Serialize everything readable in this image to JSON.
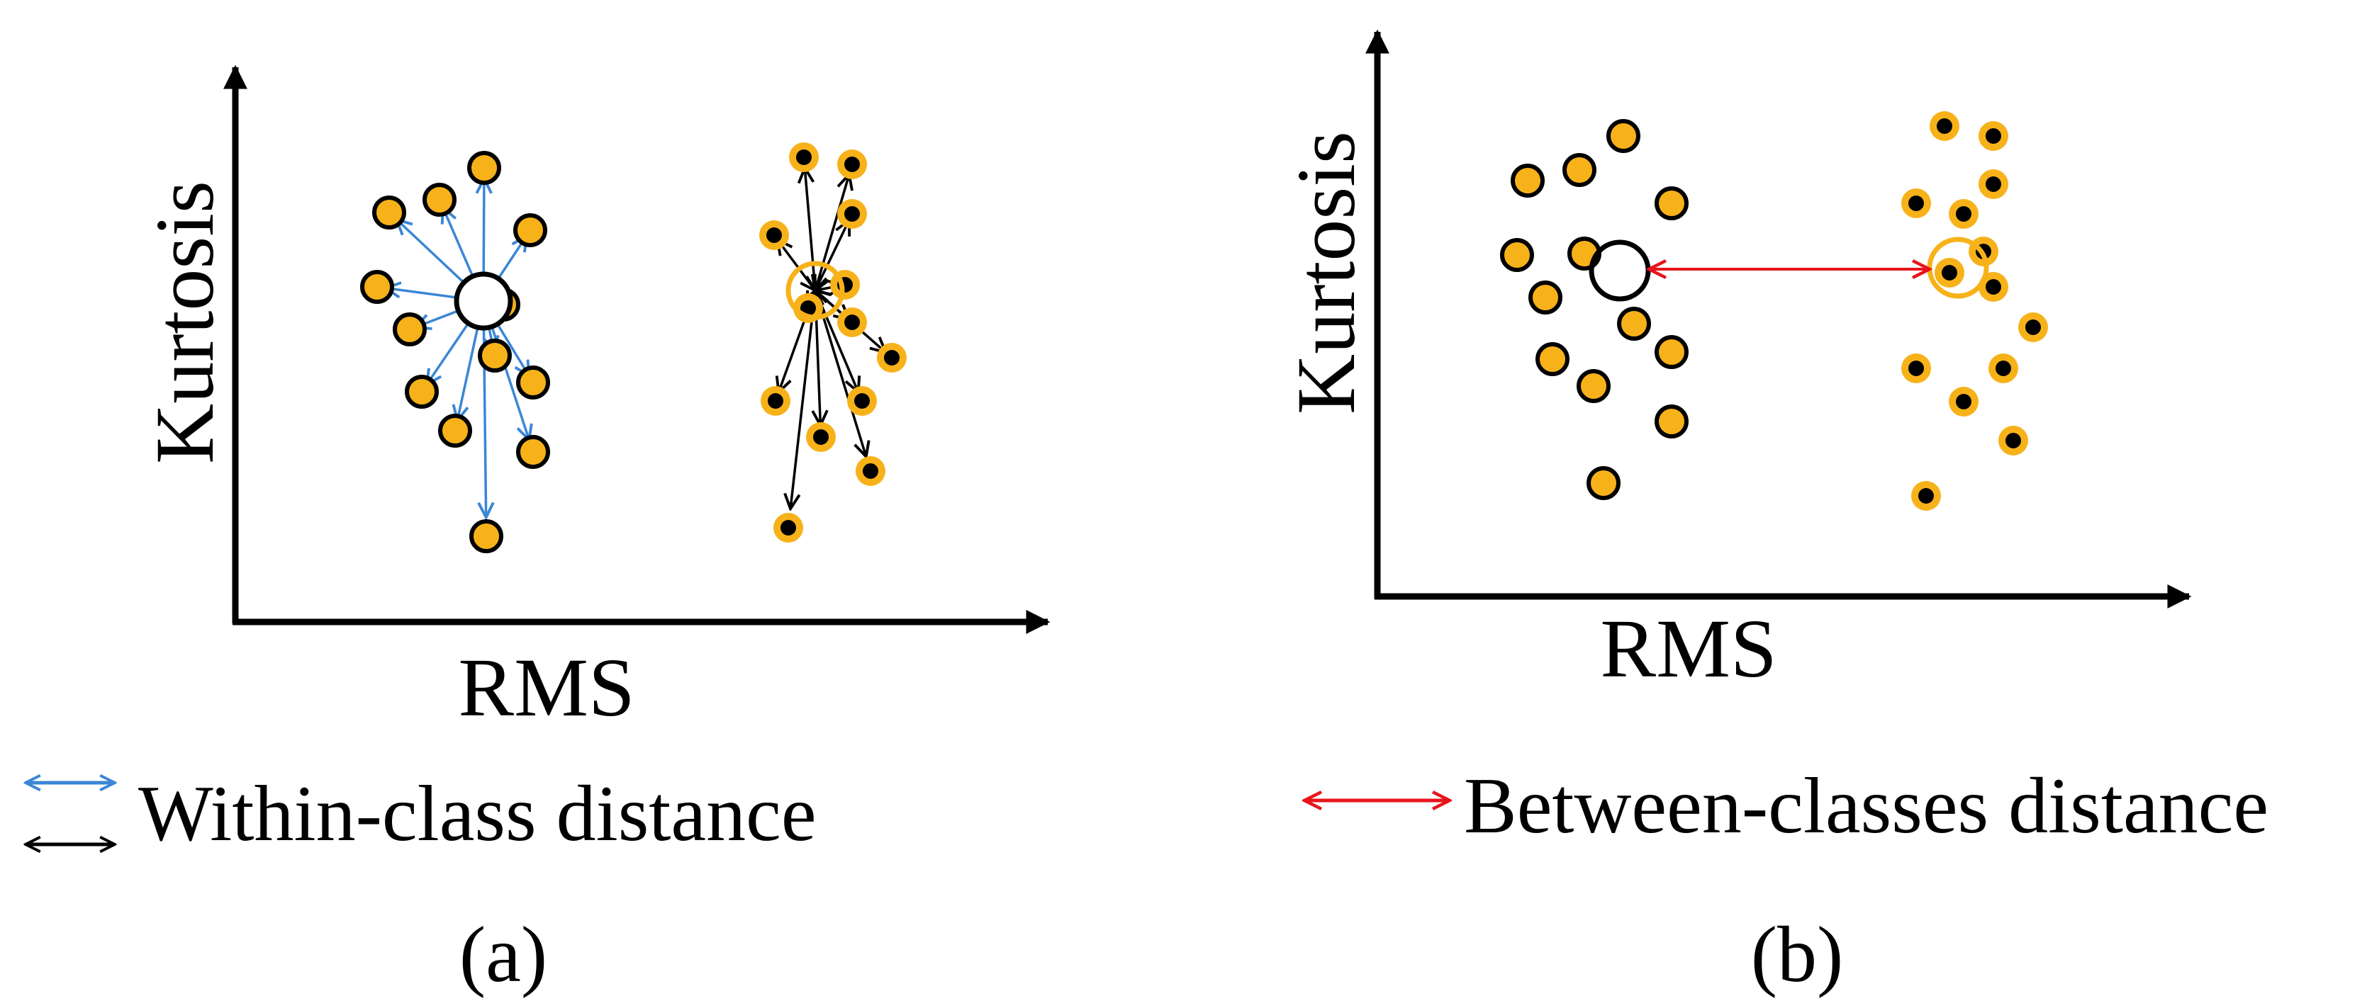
{
  "colors": {
    "point_fill": "#F7B21A",
    "point_stroke": "#000000",
    "within_class_1": "#3B86D6",
    "within_class_2": "#000000",
    "between_classes": "#E8141B",
    "centroid_1": "#000000",
    "centroid_2": "#F7B21A"
  },
  "panel_a": {
    "label": "(a)",
    "x_axis_label": "RMS",
    "y_axis_label": "Kurtosis",
    "legend": {
      "within_class": "Within-class distance"
    }
  },
  "panel_b": {
    "label": "(b)",
    "x_axis_label": "RMS",
    "y_axis_label": "Kurtosis",
    "legend": {
      "between_classes": "Between-classes distance"
    }
  }
}
